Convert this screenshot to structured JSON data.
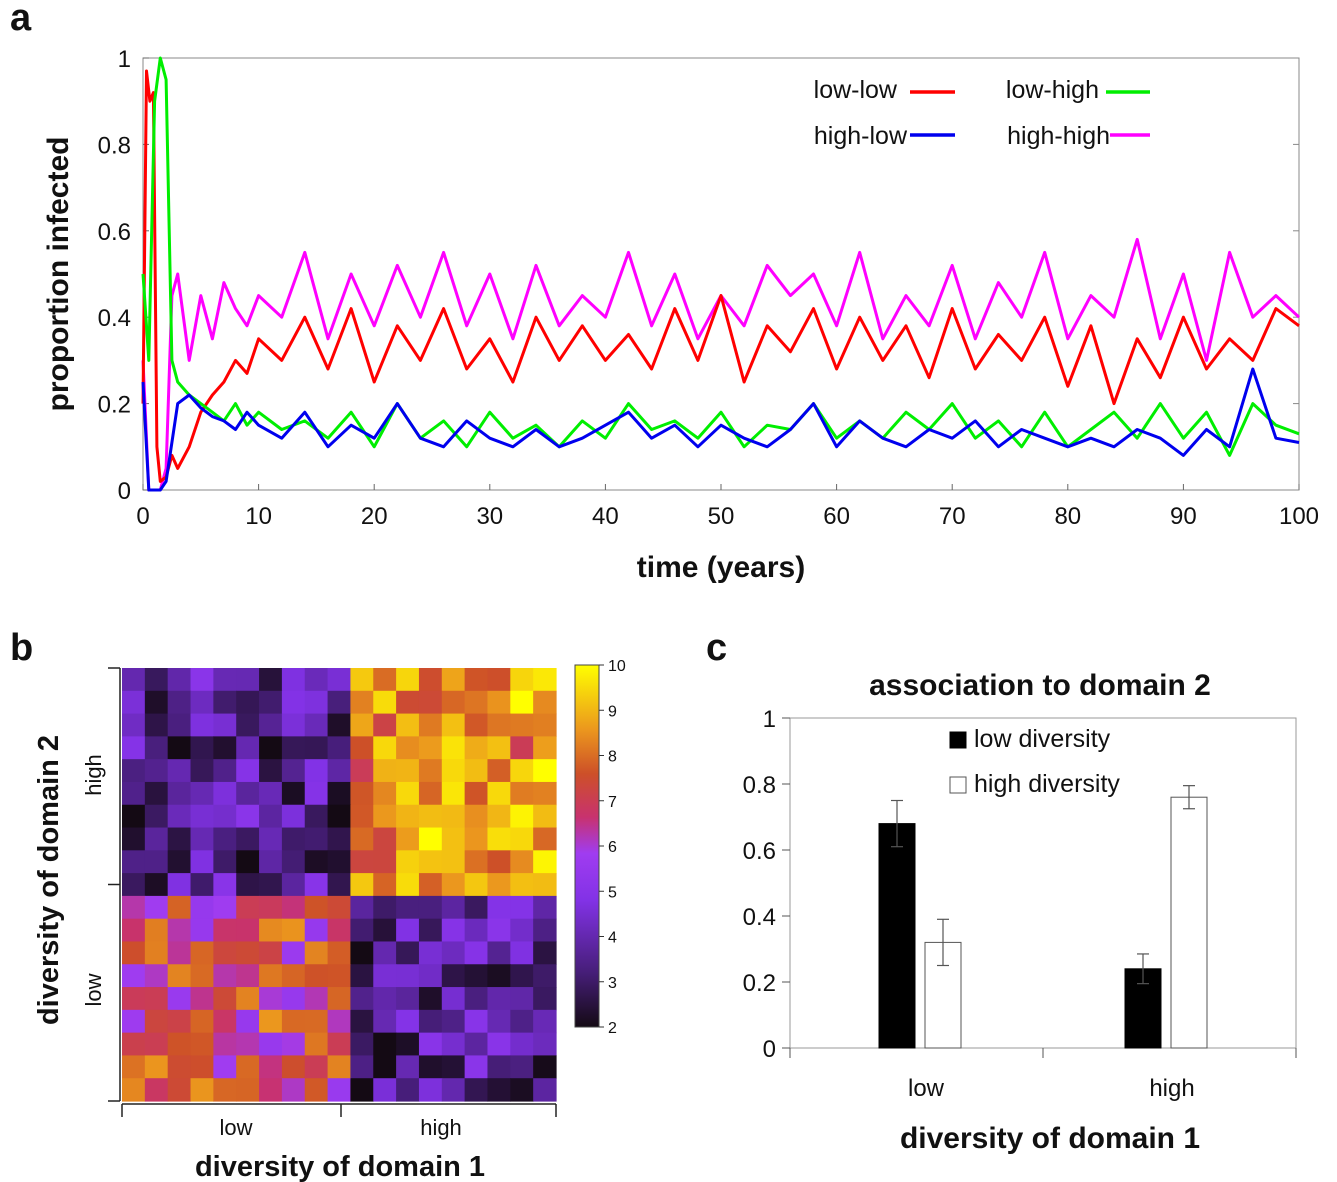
{
  "panels": {
    "a": "a",
    "b": "b",
    "c": "c"
  },
  "chart_data": [
    {
      "type": "line",
      "panel": "a",
      "xlabel": "time (years)",
      "ylabel": "proportion infected",
      "xlim": [
        0,
        100
      ],
      "ylim": [
        0,
        1
      ],
      "xticks": [
        "0",
        "10",
        "20",
        "30",
        "40",
        "50",
        "60",
        "70",
        "80",
        "90",
        "100"
      ],
      "yticks": [
        "0",
        "0.2",
        "0.4",
        "0.6",
        "0.8",
        "1"
      ],
      "legend_position": "top-right",
      "series": [
        {
          "name": "low-low",
          "color": "#ff0000",
          "x": [
            0,
            0.3,
            0.6,
            0.9,
            1.2,
            1.5,
            2,
            2.5,
            3,
            4,
            5,
            6,
            7,
            8,
            9,
            10,
            12,
            14,
            16,
            18,
            20,
            22,
            24,
            26,
            28,
            30,
            32,
            34,
            36,
            38,
            40,
            42,
            44,
            46,
            48,
            50,
            52,
            54,
            56,
            58,
            60,
            62,
            64,
            66,
            68,
            70,
            72,
            74,
            76,
            78,
            80,
            82,
            84,
            86,
            88,
            90,
            92,
            94,
            96,
            98,
            100
          ],
          "y": [
            0.2,
            0.97,
            0.9,
            0.92,
            0.1,
            0.02,
            0.03,
            0.08,
            0.05,
            0.1,
            0.18,
            0.22,
            0.25,
            0.3,
            0.27,
            0.35,
            0.3,
            0.4,
            0.28,
            0.42,
            0.25,
            0.38,
            0.3,
            0.42,
            0.28,
            0.35,
            0.25,
            0.4,
            0.3,
            0.38,
            0.3,
            0.36,
            0.28,
            0.42,
            0.3,
            0.45,
            0.25,
            0.38,
            0.32,
            0.42,
            0.28,
            0.4,
            0.3,
            0.38,
            0.26,
            0.42,
            0.28,
            0.36,
            0.3,
            0.4,
            0.24,
            0.38,
            0.2,
            0.35,
            0.26,
            0.4,
            0.28,
            0.35,
            0.3,
            0.42,
            0.38
          ]
        },
        {
          "name": "low-high",
          "color": "#00ee00",
          "x": [
            0,
            0.5,
            1,
            1.5,
            2,
            2.5,
            3,
            4,
            5,
            6,
            7,
            8,
            9,
            10,
            12,
            14,
            16,
            18,
            20,
            22,
            24,
            26,
            28,
            30,
            32,
            34,
            36,
            38,
            40,
            42,
            44,
            46,
            48,
            50,
            52,
            54,
            56,
            58,
            60,
            62,
            64,
            66,
            68,
            70,
            72,
            74,
            76,
            78,
            80,
            82,
            84,
            86,
            88,
            90,
            92,
            94,
            96,
            98,
            100
          ],
          "y": [
            0.5,
            0.3,
            0.9,
            1.0,
            0.95,
            0.3,
            0.25,
            0.22,
            0.2,
            0.18,
            0.16,
            0.2,
            0.15,
            0.18,
            0.14,
            0.16,
            0.12,
            0.18,
            0.1,
            0.2,
            0.12,
            0.16,
            0.1,
            0.18,
            0.12,
            0.15,
            0.1,
            0.16,
            0.12,
            0.2,
            0.14,
            0.16,
            0.12,
            0.18,
            0.1,
            0.15,
            0.14,
            0.2,
            0.12,
            0.16,
            0.12,
            0.18,
            0.14,
            0.2,
            0.12,
            0.16,
            0.1,
            0.18,
            0.1,
            0.14,
            0.18,
            0.12,
            0.2,
            0.12,
            0.18,
            0.08,
            0.2,
            0.15,
            0.13
          ]
        },
        {
          "name": "high-low",
          "color": "#0000ee",
          "x": [
            0,
            0.5,
            1,
            1.5,
            2,
            3,
            4,
            5,
            6,
            7,
            8,
            9,
            10,
            12,
            14,
            16,
            18,
            20,
            22,
            24,
            26,
            28,
            30,
            32,
            34,
            36,
            38,
            40,
            42,
            44,
            46,
            48,
            50,
            52,
            54,
            56,
            58,
            60,
            62,
            64,
            66,
            68,
            70,
            72,
            74,
            76,
            78,
            80,
            82,
            84,
            86,
            88,
            90,
            92,
            94,
            96,
            98,
            100
          ],
          "y": [
            0.25,
            0.0,
            0.0,
            0.0,
            0.02,
            0.2,
            0.22,
            0.19,
            0.17,
            0.16,
            0.14,
            0.18,
            0.15,
            0.12,
            0.18,
            0.1,
            0.15,
            0.12,
            0.2,
            0.12,
            0.1,
            0.16,
            0.12,
            0.1,
            0.14,
            0.1,
            0.12,
            0.15,
            0.18,
            0.12,
            0.15,
            0.1,
            0.15,
            0.12,
            0.1,
            0.14,
            0.2,
            0.1,
            0.16,
            0.12,
            0.1,
            0.14,
            0.12,
            0.16,
            0.1,
            0.14,
            0.12,
            0.1,
            0.12,
            0.1,
            0.14,
            0.12,
            0.08,
            0.14,
            0.1,
            0.28,
            0.12,
            0.11
          ]
        },
        {
          "name": "high-high",
          "color": "#ff00ff",
          "x": [
            0,
            0.5,
            1,
            1.5,
            2,
            2.5,
            3,
            4,
            5,
            6,
            7,
            8,
            9,
            10,
            12,
            14,
            16,
            18,
            20,
            22,
            24,
            26,
            28,
            30,
            32,
            34,
            36,
            38,
            40,
            42,
            44,
            46,
            48,
            50,
            52,
            54,
            56,
            58,
            60,
            62,
            64,
            66,
            68,
            70,
            72,
            74,
            76,
            78,
            80,
            82,
            84,
            86,
            88,
            90,
            92,
            94,
            96,
            98,
            100
          ],
          "y": [
            0.3,
            0.0,
            0.0,
            0.0,
            0.05,
            0.45,
            0.5,
            0.3,
            0.45,
            0.35,
            0.48,
            0.42,
            0.38,
            0.45,
            0.4,
            0.55,
            0.35,
            0.5,
            0.38,
            0.52,
            0.4,
            0.55,
            0.38,
            0.5,
            0.35,
            0.52,
            0.38,
            0.45,
            0.4,
            0.55,
            0.38,
            0.5,
            0.35,
            0.45,
            0.38,
            0.52,
            0.45,
            0.5,
            0.38,
            0.55,
            0.35,
            0.45,
            0.38,
            0.52,
            0.35,
            0.48,
            0.4,
            0.55,
            0.35,
            0.45,
            0.4,
            0.58,
            0.35,
            0.5,
            0.3,
            0.55,
            0.4,
            0.45,
            0.4
          ]
        }
      ]
    },
    {
      "type": "heatmap",
      "panel": "b",
      "xlabel": "diversity of domain 1",
      "ylabel": "diversity of domain 2",
      "x_categories": [
        "low",
        "high"
      ],
      "y_categories": [
        "low",
        "high"
      ],
      "colorbar_ticks": [
        "10",
        "9",
        "8",
        "7",
        "6",
        "5",
        "4",
        "3",
        "2"
      ],
      "colorbar_range": [
        2,
        10
      ],
      "grid_size": [
        19,
        19
      ],
      "quadrant_means": {
        "low-low": 7.0,
        "high-low": 3.5,
        "low-high": 3.5,
        "high-high": 8.5
      }
    },
    {
      "type": "bar",
      "panel": "c",
      "title": "association to domain 2",
      "xlabel": "diversity of domain 1",
      "ylabel": "",
      "ylim": [
        0,
        1
      ],
      "yticks": [
        "0",
        "0.2",
        "0.4",
        "0.6",
        "0.8",
        "1"
      ],
      "categories": [
        "low",
        "high"
      ],
      "legend_position": "top-center",
      "series": [
        {
          "name": "low diversity",
          "color": "#000000",
          "values": [
            0.68,
            0.24
          ],
          "errors": [
            0.07,
            0.045
          ]
        },
        {
          "name": "high diversity",
          "color": "#ffffff",
          "values": [
            0.32,
            0.76
          ],
          "errors": [
            0.07,
            0.035
          ]
        }
      ]
    }
  ]
}
